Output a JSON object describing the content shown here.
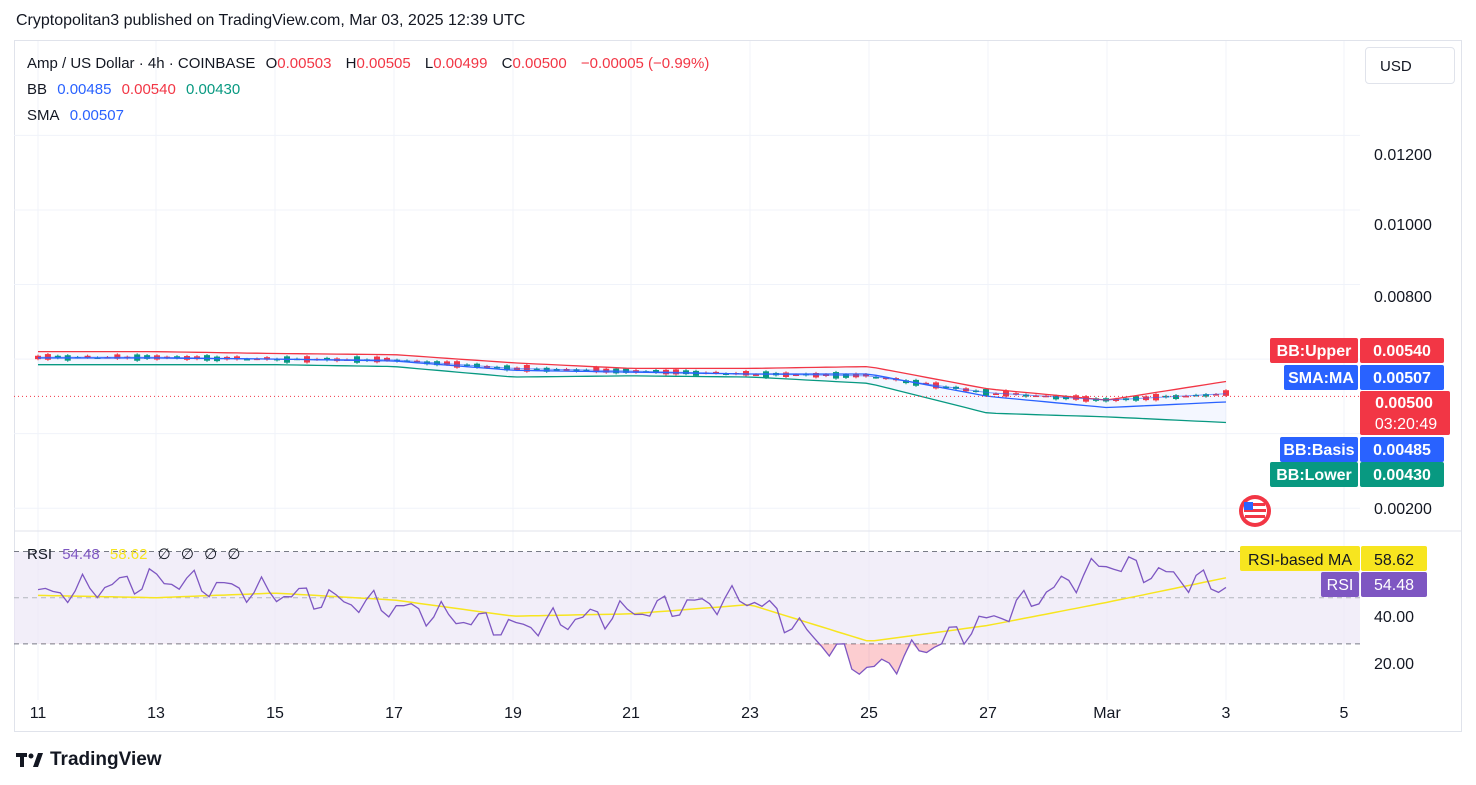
{
  "header": {
    "text": "Cryptopolitan3 published on TradingView.com, Mar 03, 2025 12:39 UTC"
  },
  "legend": {
    "symbol": "Amp / US Dollar · 4h · COINBASE",
    "o_label": "O",
    "o_value": "0.00503",
    "h_label": "H",
    "h_value": "0.00505",
    "l_label": "L",
    "l_value": "0.00499",
    "c_label": "C",
    "c_value": "0.00500",
    "change": "−0.00005 (−0.99%)",
    "bb_label": "BB",
    "bb_basis": "0.00485",
    "bb_upper": "0.00540",
    "bb_lower": "0.00430",
    "sma_label": "SMA",
    "sma_value": "0.00507"
  },
  "currency_button": "USD",
  "price_axis": [
    "0.01200",
    "0.01000",
    "0.00800",
    "0.00200"
  ],
  "rsi_axis": [
    "40.00",
    "20.00"
  ],
  "x_axis": [
    "11",
    "13",
    "15",
    "17",
    "19",
    "21",
    "23",
    "25",
    "27",
    "Mar",
    "3",
    "5"
  ],
  "tags": {
    "bb_upper_label": "BB:Upper",
    "bb_upper_value": "0.00540",
    "sma_label": "SMA:MA",
    "sma_value": "0.00507",
    "price_value": "0.00500",
    "countdown": "03:20:49",
    "bb_basis_label": "BB:Basis",
    "bb_basis_value": "0.00485",
    "bb_lower_label": "BB:Lower",
    "bb_lower_value": "0.00430",
    "rsi_ma_label": "RSI-based MA",
    "rsi_ma_value": "58.62",
    "rsi_label": "RSI",
    "rsi_value": "54.48"
  },
  "rsi_legend": {
    "label": "RSI",
    "value": "54.48",
    "ma": "58.62",
    "extra": [
      "∅",
      "∅",
      "∅",
      "∅"
    ]
  },
  "footer": {
    "brand": "TradingView"
  },
  "colors": {
    "up": "#089981",
    "down": "#f23645",
    "bb_upper": "#f23645",
    "bb_basis": "#2962ff",
    "bb_lower": "#089981",
    "rsi": "#7e57c2",
    "rsi_ma": "#f7e51f",
    "rsi_band": "#ede7f6"
  },
  "chart_data": [
    {
      "type": "line",
      "title": "Amp / US Dollar · 4h · COINBASE",
      "x": [
        "11",
        "13",
        "15",
        "17",
        "19",
        "21",
        "23",
        "25",
        "27",
        "Mar",
        "3"
      ],
      "series": [
        {
          "name": "BB:Upper",
          "values": [
            0.0062,
            0.0062,
            0.00615,
            0.00612,
            0.0059,
            0.00575,
            0.00575,
            0.0058,
            0.0052,
            0.0049,
            0.0054
          ]
        },
        {
          "name": "BB:Basis",
          "values": [
            0.00603,
            0.00603,
            0.006,
            0.00595,
            0.0057,
            0.00565,
            0.0056,
            0.0056,
            0.005,
            0.0047,
            0.00485
          ]
        },
        {
          "name": "BB:Lower",
          "values": [
            0.00585,
            0.00585,
            0.00585,
            0.0058,
            0.00552,
            0.00555,
            0.00552,
            0.00535,
            0.00455,
            0.00445,
            0.0043
          ]
        },
        {
          "name": "SMA:MA",
          "values": [
            0.00605,
            0.00605,
            0.006,
            0.00598,
            0.00575,
            0.00568,
            0.0056,
            0.00555,
            0.0051,
            0.0049,
            0.00507
          ]
        }
      ],
      "last_price": 0.005,
      "ylim": [
        0.00155,
        0.01295
      ]
    },
    {
      "type": "line",
      "title": "RSI",
      "x": [
        "11",
        "13",
        "15",
        "17",
        "19",
        "21",
        "23",
        "25",
        "27",
        "Mar",
        "3"
      ],
      "series": [
        {
          "name": "RSI",
          "values": [
            51,
            58,
            52,
            46,
            37,
            44,
            50,
            18,
            40,
            65,
            54.48
          ]
        },
        {
          "name": "RSI-based MA",
          "values": [
            51,
            50,
            52,
            49,
            42,
            43,
            47,
            31,
            38,
            48,
            58.62
          ]
        }
      ],
      "levels": [
        70,
        30
      ],
      "ylim": [
        10,
        75
      ]
    }
  ]
}
